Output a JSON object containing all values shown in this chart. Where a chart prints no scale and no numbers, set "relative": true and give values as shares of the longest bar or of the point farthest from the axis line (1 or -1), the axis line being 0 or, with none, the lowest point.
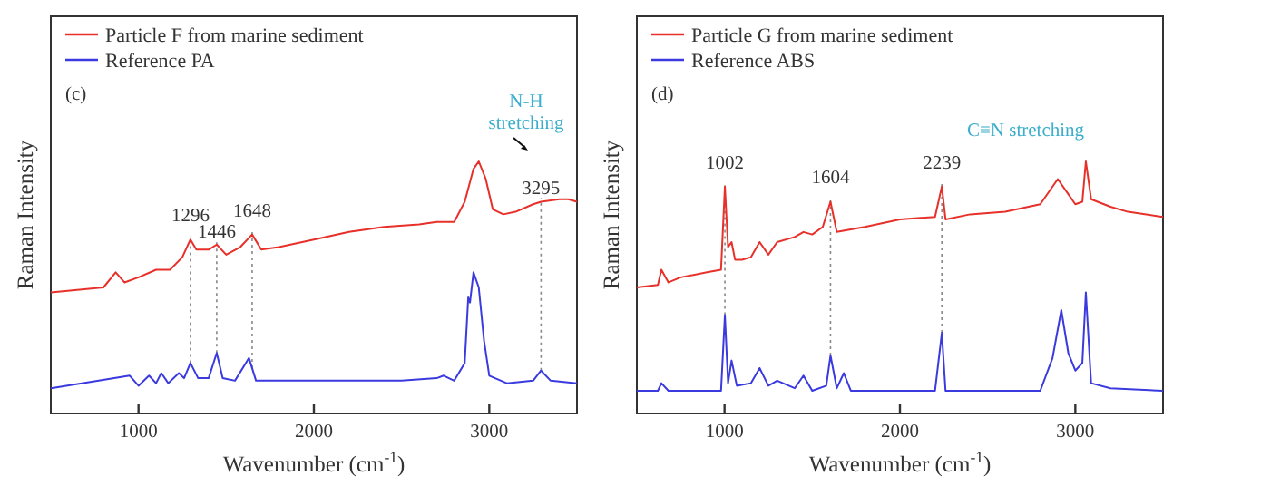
{
  "chart_data": [
    {
      "type": "line",
      "relative": true,
      "xlabel": "Wavenumber (cm$^{-1}$)",
      "ylabel": "Raman Intensity",
      "xlim": [
        500,
        3500
      ],
      "xticks": [
        1000,
        2000,
        3000
      ],
      "legend": "top left",
      "tick_labels": "x",
      "line_style": "solid",
      "annotations": [
        "(c)",
        "N-H stretching"
      ],
      "ref_lines": [
        {
          "axis": "x",
          "value": 1296,
          "label": "1296",
          "line_style": "dotted",
          "color": "#888888"
        },
        {
          "axis": "x",
          "value": 1446,
          "label": "1446",
          "line_style": "dotted",
          "color": "#888888"
        },
        {
          "axis": "x",
          "value": 1648,
          "label": "1648",
          "line_style": "dotted",
          "color": "#888888"
        },
        {
          "axis": "x",
          "value": 3295,
          "label": "3295",
          "line_style": "dotted",
          "color": "#888888"
        }
      ],
      "series": [
        {
          "name": "Particle F from marine sediment",
          "color": "#e8302a",
          "x": [
            500,
            800,
            870,
            920,
            1000,
            1100,
            1180,
            1250,
            1296,
            1330,
            1400,
            1446,
            1500,
            1580,
            1648,
            1700,
            1800,
            2000,
            2200,
            2400,
            2600,
            2700,
            2800,
            2860,
            2910,
            2940,
            2980,
            3020,
            3080,
            3150,
            3250,
            3295,
            3400,
            3450,
            3500
          ],
          "values": [
            0.48,
            0.5,
            0.56,
            0.52,
            0.54,
            0.57,
            0.57,
            0.62,
            0.69,
            0.65,
            0.65,
            0.67,
            0.63,
            0.66,
            0.71,
            0.65,
            0.66,
            0.69,
            0.72,
            0.74,
            0.75,
            0.76,
            0.76,
            0.84,
            0.97,
            1,
            0.93,
            0.81,
            0.79,
            0.8,
            0.83,
            0.84,
            0.85,
            0.85,
            0.84
          ]
        },
        {
          "name": "Reference PA",
          "color": "#3a3adf",
          "x": [
            500,
            950,
            1000,
            1060,
            1100,
            1130,
            1170,
            1230,
            1260,
            1296,
            1340,
            1400,
            1446,
            1480,
            1550,
            1630,
            1670,
            1800,
            2500,
            2700,
            2740,
            2800,
            2860,
            2880,
            2890,
            2910,
            2940,
            2970,
            3000,
            3100,
            3250,
            3295,
            3350,
            3500
          ],
          "values": [
            0.1,
            0.15,
            0.11,
            0.15,
            0.12,
            0.16,
            0.12,
            0.16,
            0.14,
            0.2,
            0.14,
            0.14,
            0.24,
            0.14,
            0.13,
            0.22,
            0.13,
            0.13,
            0.13,
            0.14,
            0.15,
            0.13,
            0.2,
            0.46,
            0.44,
            0.56,
            0.5,
            0.29,
            0.15,
            0.12,
            0.13,
            0.17,
            0.13,
            0.12
          ]
        }
      ]
    },
    {
      "type": "line",
      "relative": true,
      "xlabel": "Wavenumber (cm$^{-1}$)",
      "ylabel": "Raman Intensity",
      "xlim": [
        500,
        3500
      ],
      "xticks": [
        1000,
        2000,
        3000
      ],
      "legend": "top left",
      "tick_labels": "x",
      "line_style": "solid",
      "annotations": [
        "(d)",
        "C≡N stretching"
      ],
      "ref_lines": [
        {
          "axis": "x",
          "value": 1002,
          "label": "1002",
          "line_style": "dotted",
          "color": "#888888"
        },
        {
          "axis": "x",
          "value": 1604,
          "label": "1604",
          "line_style": "dotted",
          "color": "#888888"
        },
        {
          "axis": "x",
          "value": 2239,
          "label": "2239",
          "line_style": "dotted",
          "color": "#888888"
        }
      ],
      "series": [
        {
          "name": "Particle G from marine sediment",
          "color": "#e8302a",
          "x": [
            500,
            620,
            640,
            680,
            750,
            900,
            980,
            1002,
            1020,
            1040,
            1060,
            1100,
            1150,
            1200,
            1250,
            1300,
            1400,
            1450,
            1500,
            1560,
            1604,
            1640,
            1800,
            2000,
            2200,
            2239,
            2260,
            2400,
            2600,
            2800,
            2900,
            2950,
            3000,
            3040,
            3060,
            3090,
            3200,
            3300,
            3500
          ],
          "values": [
            0.5,
            0.51,
            0.57,
            0.52,
            0.54,
            0.56,
            0.57,
            0.9,
            0.66,
            0.68,
            0.61,
            0.61,
            0.62,
            0.68,
            0.63,
            0.68,
            0.7,
            0.72,
            0.71,
            0.74,
            0.84,
            0.72,
            0.74,
            0.77,
            0.78,
            0.9,
            0.77,
            0.79,
            0.8,
            0.83,
            0.93,
            0.88,
            0.83,
            0.84,
            1,
            0.85,
            0.82,
            0.8,
            0.78
          ]
        },
        {
          "name": "Reference ABS",
          "color": "#3a3adf",
          "x": [
            500,
            620,
            640,
            680,
            980,
            1002,
            1020,
            1040,
            1070,
            1150,
            1200,
            1250,
            1300,
            1400,
            1450,
            1500,
            1580,
            1604,
            1640,
            1680,
            1720,
            2200,
            2239,
            2260,
            2800,
            2870,
            2920,
            2960,
            3000,
            3040,
            3060,
            3090,
            3200,
            3500
          ],
          "values": [
            0.09,
            0.09,
            0.12,
            0.09,
            0.09,
            0.39,
            0.12,
            0.21,
            0.11,
            0.12,
            0.18,
            0.11,
            0.13,
            0.1,
            0.15,
            0.09,
            0.11,
            0.23,
            0.1,
            0.16,
            0.09,
            0.09,
            0.32,
            0.09,
            0.09,
            0.22,
            0.41,
            0.24,
            0.17,
            0.2,
            0.48,
            0.12,
            0.1,
            0.09
          ]
        }
      ]
    }
  ]
}
